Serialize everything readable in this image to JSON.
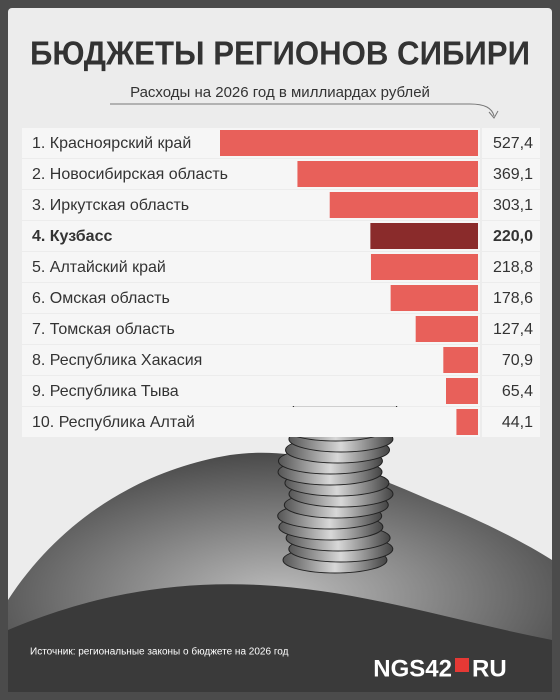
{
  "chart_data": {
    "type": "bar",
    "title": "БЮДЖЕТЫ РЕГИОНОВ СИБИРИ",
    "subtitle": "Расходы на 2026 год в миллиардах рублей",
    "categories": [
      "1. Красноярский край",
      "2. Новосибирская область",
      "3. Иркутская область",
      "4. Кузбасс",
      "5. Алтайский край",
      "6. Омская область",
      "7. Томская область",
      "8. Республика Хакасия",
      "9. Республика Тыва",
      "10. Республика Алтай"
    ],
    "values": [
      527.4,
      369.1,
      303.1,
      220.0,
      218.8,
      178.6,
      127.4,
      70.9,
      65.4,
      44.1
    ],
    "value_labels": [
      "527,4",
      "369,1",
      "303,1",
      "220,0",
      "218,8",
      "178,6",
      "127,4",
      "70,9",
      "65,4",
      "44,1"
    ],
    "color": "#e8605a",
    "colors": [
      "#e8605a",
      "#e8605a",
      "#e8605a",
      "#8a2b2b",
      "#e8605a",
      "#e8605a",
      "#e8605a",
      "#e8605a",
      "#e8605a",
      "#e8605a"
    ],
    "source": "Источник: региональные законы о бюджете на 2026 год",
    "logo": "NGS42",
    "logo_suffix": "RU"
  }
}
